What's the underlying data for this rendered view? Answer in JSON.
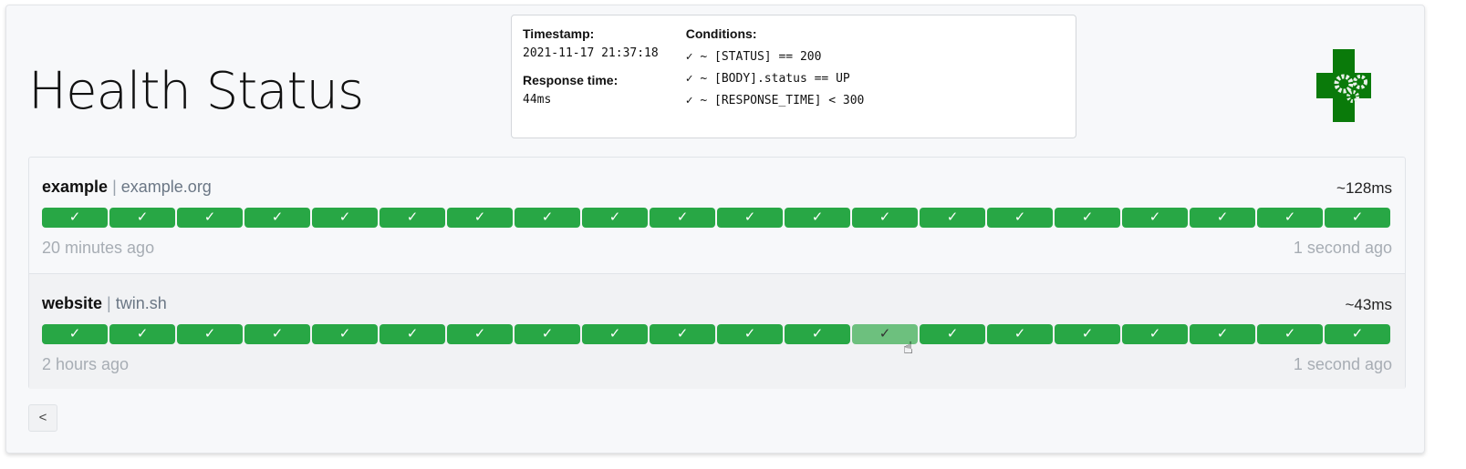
{
  "title": "Health Status",
  "colors": {
    "success": "#28a745",
    "hover": "#6dc07e",
    "logo": "#0a7a0a"
  },
  "services": [
    {
      "name": "example",
      "separator": "|",
      "host": "example.org",
      "avg_response": "~128ms",
      "oldest": "20 minutes ago",
      "newest": "1 second ago",
      "results": [
        "✓",
        "✓",
        "✓",
        "✓",
        "✓",
        "✓",
        "✓",
        "✓",
        "✓",
        "✓",
        "✓",
        "✓",
        "✓",
        "✓",
        "✓",
        "✓",
        "✓",
        "✓",
        "✓",
        "✓"
      ]
    },
    {
      "name": "website",
      "separator": "|",
      "host": "twin.sh",
      "avg_response": "~43ms",
      "oldest": "2 hours ago",
      "newest": "1 second ago",
      "results": [
        "✓",
        "✓",
        "✓",
        "✓",
        "✓",
        "✓",
        "✓",
        "✓",
        "✓",
        "✓",
        "✓",
        "✓",
        "✓",
        "✓",
        "✓",
        "✓",
        "✓",
        "✓",
        "✓",
        "✓"
      ],
      "hovered_index": 12
    }
  ],
  "tooltip": {
    "timestamp_label": "Timestamp:",
    "timestamp": "2021-11-17 21:37:18",
    "response_label": "Response time:",
    "response": "44ms",
    "conditions_label": "Conditions:",
    "conditions": [
      "✓ ~ [STATUS] == 200",
      "✓ ~ [BODY].status == UP",
      "✓ ~ [RESPONSE_TIME] < 300"
    ]
  },
  "pagination": {
    "prev_label": "<"
  }
}
